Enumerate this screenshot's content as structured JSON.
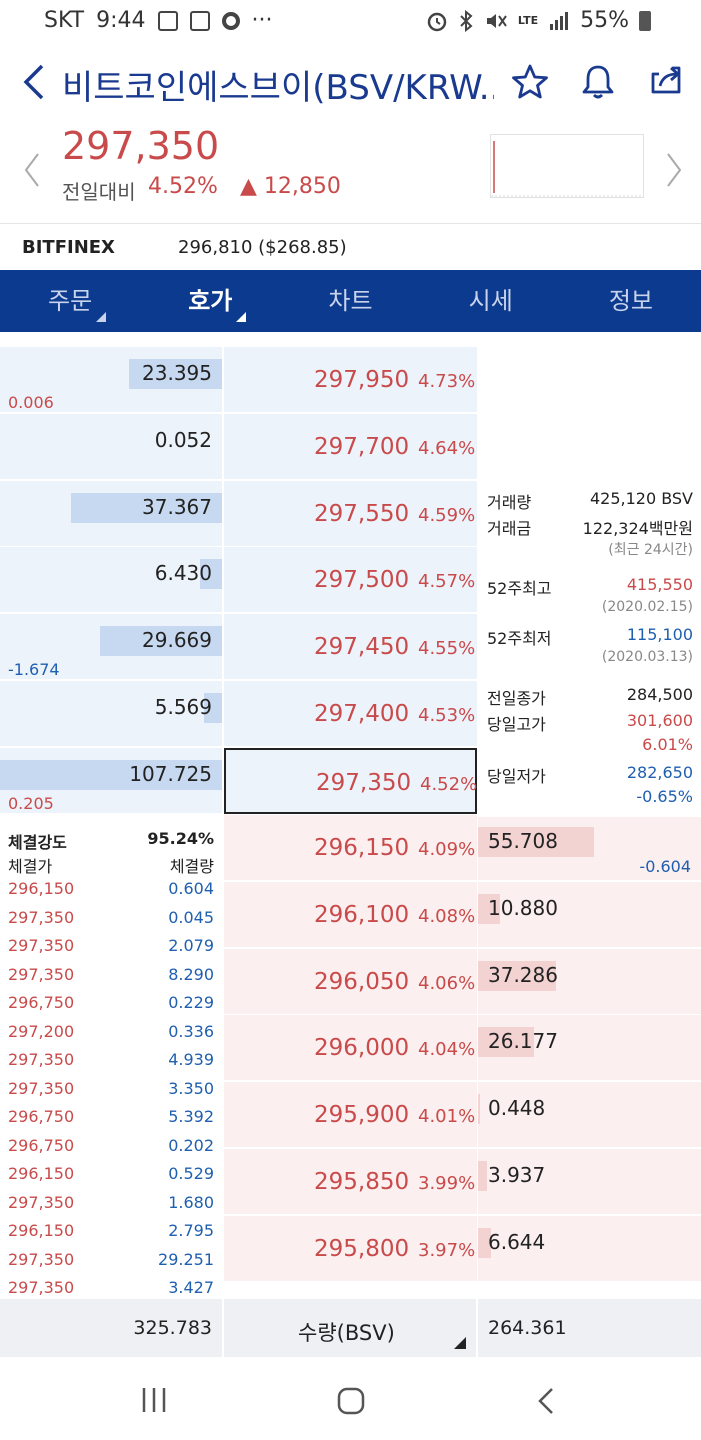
{
  "status_bar": {
    "carrier": "SKT",
    "time": "9:44",
    "dots": "···",
    "lte": "LTE",
    "battery": "55%"
  },
  "header": {
    "title": "비트코인에스브이(BSV/KRW..."
  },
  "price": {
    "current": "297,350",
    "compare_label": "전일대비",
    "change_rate": "4.52%",
    "change_amount": "▲ 12,850"
  },
  "exchange": {
    "name": "BITFINEX",
    "value": "296,810 ($268.85)"
  },
  "tabs": [
    {
      "label": "주문"
    },
    {
      "label": "호가"
    },
    {
      "label": "차트"
    },
    {
      "label": "시세"
    },
    {
      "label": "정보"
    }
  ],
  "asks": [
    {
      "qty": "23.395",
      "price": "297,950",
      "rate": "4.73%",
      "change": "0.006",
      "bar": 0.42
    },
    {
      "qty": "0.052",
      "price": "297,700",
      "rate": "4.64%",
      "change": "",
      "bar": 0.0
    },
    {
      "qty": "37.367",
      "price": "297,550",
      "rate": "4.59%",
      "change": "",
      "bar": 0.68
    },
    {
      "qty": "6.430",
      "price": "297,500",
      "rate": "4.57%",
      "change": "",
      "bar": 0.1
    },
    {
      "qty": "29.669",
      "price": "297,450",
      "rate": "4.55%",
      "change": "-1.674",
      "bar": 0.55
    },
    {
      "qty": "5.569",
      "price": "297,400",
      "rate": "4.53%",
      "change": "",
      "bar": 0.08
    },
    {
      "qty": "107.725",
      "price": "297,350",
      "rate": "4.52%",
      "change": "0.205",
      "bar": 1.0
    }
  ],
  "bids": [
    {
      "qty": "55.708",
      "price": "296,150",
      "rate": "4.09%",
      "change": "-0.604",
      "bar": 0.52
    },
    {
      "qty": "10.880",
      "price": "296,100",
      "rate": "4.08%",
      "change": "",
      "bar": 0.1
    },
    {
      "qty": "37.286",
      "price": "296,050",
      "rate": "4.06%",
      "change": "",
      "bar": 0.35
    },
    {
      "qty": "26.177",
      "price": "296,000",
      "rate": "4.04%",
      "change": "",
      "bar": 0.25
    },
    {
      "qty": "0.448",
      "price": "295,900",
      "rate": "4.01%",
      "change": "",
      "bar": 0.0
    },
    {
      "qty": "3.937",
      "price": "295,850",
      "rate": "3.99%",
      "change": "",
      "bar": 0.04
    },
    {
      "qty": "6.644",
      "price": "295,800",
      "rate": "3.97%",
      "change": "",
      "bar": 0.06
    }
  ],
  "info": {
    "volume_label": "거래량",
    "volume": "425,120 BSV",
    "amount_label": "거래금",
    "amount": "122,324백만원",
    "period_note": "(최근 24시간)",
    "high52_label": "52주최고",
    "high52": "415,550",
    "high52_date": "(2020.02.15)",
    "low52_label": "52주최저",
    "low52": "115,100",
    "low52_date": "(2020.03.13)",
    "prev_close_label": "전일종가",
    "prev_close": "284,500",
    "day_high_label": "당일고가",
    "day_high": "301,600",
    "day_high_rate": "6.01%",
    "day_low_label": "당일저가",
    "day_low": "282,650",
    "day_low_rate": "-0.65%"
  },
  "trades": {
    "strength_label": "체결강도",
    "strength": "95.24%",
    "price_header": "체결가",
    "qty_header": "체결량",
    "rows": [
      {
        "price": "296,150",
        "qty": "0.604"
      },
      {
        "price": "297,350",
        "qty": "0.045"
      },
      {
        "price": "297,350",
        "qty": "2.079"
      },
      {
        "price": "297,350",
        "qty": "8.290"
      },
      {
        "price": "296,750",
        "qty": "0.229"
      },
      {
        "price": "297,200",
        "qty": "0.336"
      },
      {
        "price": "297,350",
        "qty": "4.939"
      },
      {
        "price": "297,350",
        "qty": "3.350"
      },
      {
        "price": "296,750",
        "qty": "5.392"
      },
      {
        "price": "296,750",
        "qty": "0.202"
      },
      {
        "price": "296,150",
        "qty": "0.529"
      },
      {
        "price": "297,350",
        "qty": "1.680"
      },
      {
        "price": "296,150",
        "qty": "2.795"
      },
      {
        "price": "297,350",
        "qty": "29.251"
      },
      {
        "price": "297,350",
        "qty": "3.427"
      }
    ]
  },
  "footer": {
    "ask_total": "325.783",
    "unit_label": "수량(BSV)",
    "bid_total": "264.361"
  },
  "colors": {
    "brand": "#0c3a8e",
    "up": "#c94a4a",
    "down": "#1f5fb0",
    "ask_bg": "#edf3fb",
    "bid_bg": "#fbefef"
  }
}
